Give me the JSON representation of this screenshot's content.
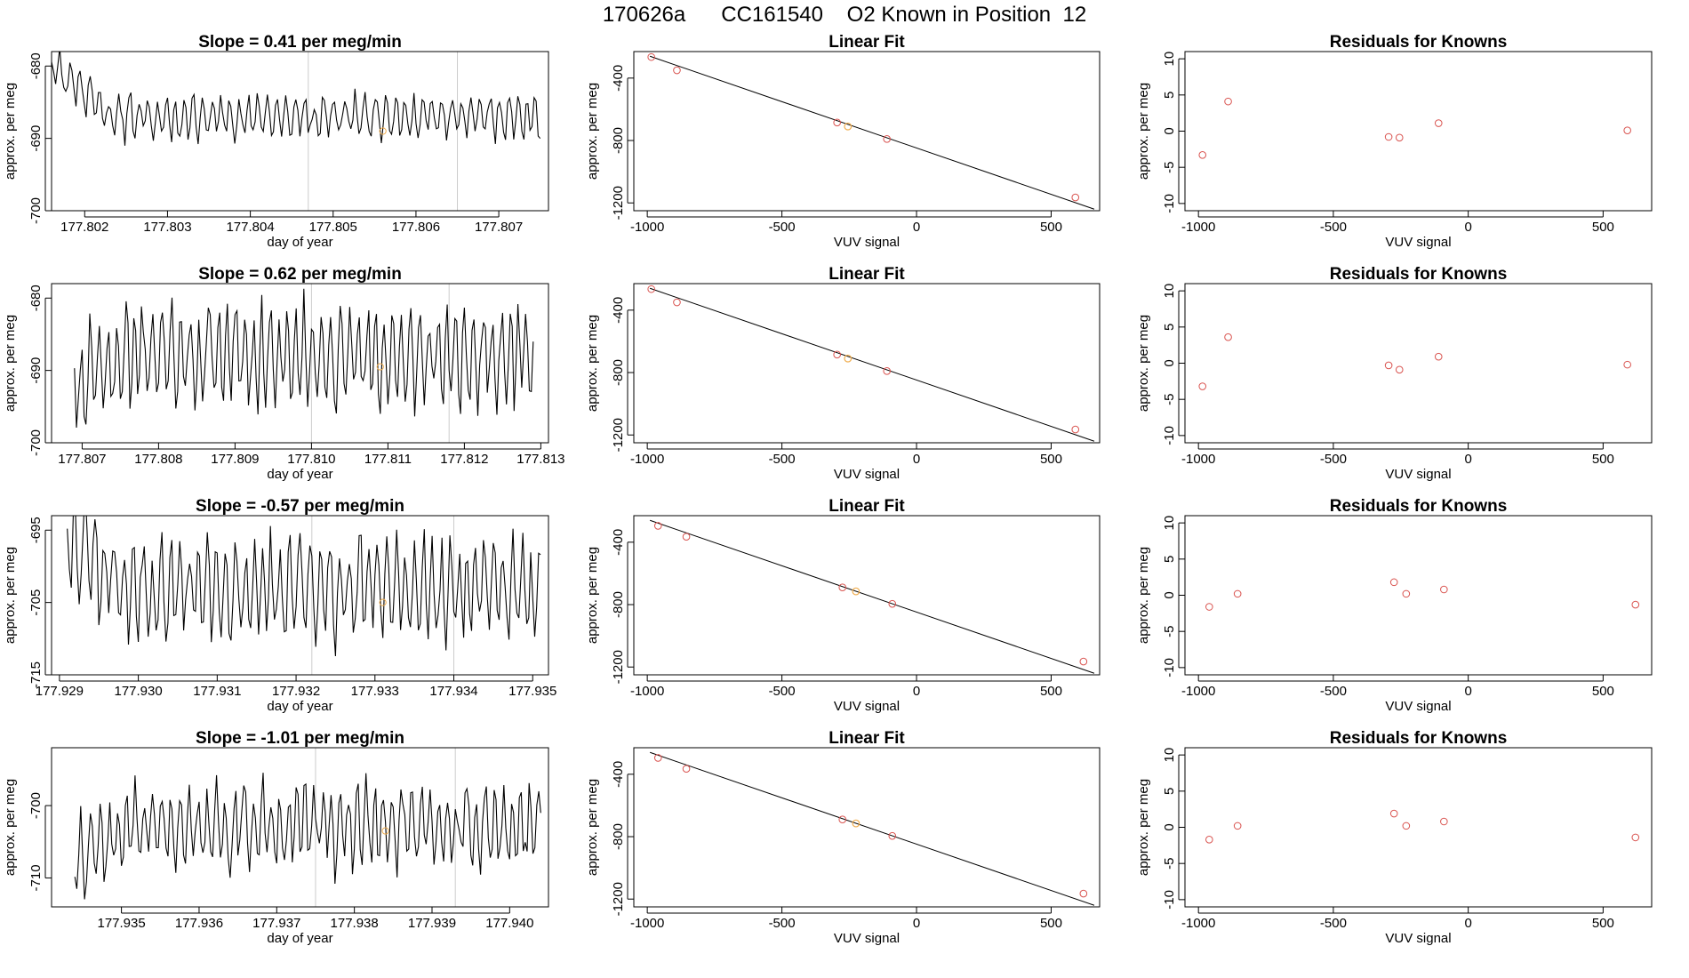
{
  "page_title": "170626a      CC161540    O2 Known in Position  12",
  "colors": {
    "line": "#000000",
    "point": "#d9534f",
    "highlight": "#f0ad4e",
    "vline": "#cccccc"
  },
  "chart_data": [
    {
      "row": 1,
      "panels": [
        {
          "type": "line",
          "title": "Slope =  0.41  per meg/min",
          "xlabel": "day of year",
          "ylabel": "approx. per meg",
          "xlim": [
            177.8016,
            177.8076
          ],
          "ylim": [
            -700,
            -678
          ],
          "xticks": [
            177.802,
            177.803,
            177.804,
            177.805,
            177.806,
            177.807
          ],
          "xtick_labels": [
            "177.802",
            "177.803",
            "177.804",
            "177.805",
            "177.806",
            "177.807"
          ],
          "yticks": [
            -700,
            -690,
            -680
          ],
          "ytick_labels": [
            "-700",
            "-690",
            "-680"
          ],
          "x_start": 177.8016,
          "x_end": 177.8075,
          "level": -687,
          "amplitude": 3,
          "trace_start_level": -680,
          "vlines": [
            177.8047,
            177.8065
          ],
          "highlight_point": {
            "x": 177.8056,
            "y": -689
          }
        },
        {
          "type": "scatter_fit",
          "title": "Linear Fit",
          "xlabel": "VUV signal",
          "ylabel": "approx. per meg",
          "xlim": [
            -1050,
            680
          ],
          "ylim": [
            -1250,
            -230
          ],
          "xticks": [
            -1000,
            -500,
            0,
            500
          ],
          "xtick_labels": [
            "-1000",
            "-500",
            "0",
            "500"
          ],
          "yticks": [
            -1200,
            -800,
            -400
          ],
          "ytick_labels": [
            "-1200",
            "-800",
            "-400"
          ],
          "line": {
            "x1": -990,
            "y1": -260,
            "x2": 660,
            "y2": -1240
          },
          "points": [
            [
              -985,
              -265
            ],
            [
              -890,
              -350
            ],
            [
              -295,
              -685
            ],
            [
              -110,
              -790
            ],
            [
              590,
              -1165
            ]
          ],
          "highlight_point": [
            -255,
            -710
          ]
        },
        {
          "type": "scatter",
          "title": "Residuals for Knowns",
          "xlabel": "VUV signal",
          "ylabel": "approx. per meg",
          "xlim": [
            -1050,
            680
          ],
          "ylim": [
            -11,
            11
          ],
          "xticks": [
            -1000,
            -500,
            0,
            500
          ],
          "xtick_labels": [
            "-1000",
            "-500",
            "0",
            "500"
          ],
          "yticks": [
            -10,
            -5,
            0,
            5,
            10
          ],
          "ytick_labels": [
            "-10",
            "-5",
            "0",
            "5",
            "10"
          ],
          "points": [
            [
              -985,
              -3.3
            ],
            [
              -890,
              4.1
            ],
            [
              -295,
              -0.8
            ],
            [
              -255,
              -0.9
            ],
            [
              -110,
              1.1
            ],
            [
              590,
              0.1
            ]
          ]
        }
      ]
    },
    {
      "row": 2,
      "panels": [
        {
          "type": "line",
          "title": "Slope =  0.62  per meg/min",
          "xlabel": "day of year",
          "ylabel": "approx. per meg",
          "xlim": [
            177.8066,
            177.8131
          ],
          "ylim": [
            -700,
            -678
          ],
          "xticks": [
            177.807,
            177.808,
            177.809,
            177.81,
            177.811,
            177.812,
            177.813
          ],
          "xtick_labels": [
            "177.807",
            "177.808",
            "177.809",
            "177.810",
            "177.811",
            "177.812",
            "177.813"
          ],
          "yticks": [
            -700,
            -690,
            -680
          ],
          "ytick_labels": [
            "-700",
            "-690",
            "-680"
          ],
          "x_start": 177.8069,
          "x_end": 177.8129,
          "level": -688,
          "amplitude": 7,
          "trace_start_level": -692,
          "vlines": [
            177.81,
            177.8118
          ],
          "highlight_point": {
            "x": 177.8109,
            "y": -689.5
          }
        },
        {
          "type": "scatter_fit",
          "title": "Linear Fit",
          "xlabel": "VUV signal",
          "ylabel": "approx. per meg",
          "xlim": [
            -1050,
            680
          ],
          "ylim": [
            -1250,
            -230
          ],
          "xticks": [
            -1000,
            -500,
            0,
            500
          ],
          "xtick_labels": [
            "-1000",
            "-500",
            "0",
            "500"
          ],
          "yticks": [
            -1200,
            -800,
            -400
          ],
          "ytick_labels": [
            "-1200",
            "-800",
            "-400"
          ],
          "line": {
            "x1": -990,
            "y1": -260,
            "x2": 660,
            "y2": -1240
          },
          "points": [
            [
              -985,
              -265
            ],
            [
              -890,
              -350
            ],
            [
              -295,
              -685
            ],
            [
              -110,
              -790
            ],
            [
              590,
              -1165
            ]
          ],
          "highlight_point": [
            -255,
            -710
          ]
        },
        {
          "type": "scatter",
          "title": "Residuals for Knowns",
          "xlabel": "VUV signal",
          "ylabel": "approx. per meg",
          "xlim": [
            -1050,
            680
          ],
          "ylim": [
            -11,
            11
          ],
          "xticks": [
            -1000,
            -500,
            0,
            500
          ],
          "xtick_labels": [
            "-1000",
            "-500",
            "0",
            "500"
          ],
          "yticks": [
            -10,
            -5,
            0,
            5,
            10
          ],
          "ytick_labels": [
            "-10",
            "-5",
            "0",
            "5",
            "10"
          ],
          "points": [
            [
              -985,
              -3.2
            ],
            [
              -890,
              3.6
            ],
            [
              -295,
              -0.3
            ],
            [
              -255,
              -0.9
            ],
            [
              -110,
              0.9
            ],
            [
              590,
              -0.2
            ]
          ]
        }
      ]
    },
    {
      "row": 3,
      "panels": [
        {
          "type": "line",
          "title": "Slope =  -0.57  per meg/min",
          "xlabel": "day of year",
          "ylabel": "approx. per meg",
          "xlim": [
            177.9289,
            177.9352
          ],
          "ylim": [
            -715,
            -693
          ],
          "xticks": [
            177.929,
            177.93,
            177.931,
            177.932,
            177.933,
            177.934,
            177.935
          ],
          "xtick_labels": [
            "177.929",
            "177.930",
            "177.931",
            "177.932",
            "177.933",
            "177.934",
            "177.935"
          ],
          "yticks": [
            -715,
            -705,
            -695
          ],
          "ytick_labels": [
            "-715",
            "-705",
            "-695"
          ],
          "x_start": 177.9291,
          "x_end": 177.9351,
          "level": -703,
          "amplitude": 7,
          "trace_start_level": -696,
          "vlines": [
            177.9322,
            177.934
          ],
          "highlight_point": {
            "x": 177.9331,
            "y": -705
          }
        },
        {
          "type": "scatter_fit",
          "title": "Linear Fit",
          "xlabel": "VUV signal",
          "ylabel": "approx. per meg",
          "xlim": [
            -1050,
            680
          ],
          "ylim": [
            -1250,
            -230
          ],
          "xticks": [
            -1000,
            -500,
            0,
            500
          ],
          "xtick_labels": [
            "-1000",
            "-500",
            "0",
            "500"
          ],
          "yticks": [
            -1200,
            -800,
            -400
          ],
          "ytick_labels": [
            "-1200",
            "-800",
            "-400"
          ],
          "line": {
            "x1": -990,
            "y1": -260,
            "x2": 660,
            "y2": -1240
          },
          "points": [
            [
              -960,
              -295
            ],
            [
              -855,
              -365
            ],
            [
              -275,
              -690
            ],
            [
              -90,
              -795
            ],
            [
              620,
              -1165
            ]
          ],
          "highlight_point": [
            -225,
            -715
          ]
        },
        {
          "type": "scatter",
          "title": "Residuals for Knowns",
          "xlabel": "VUV signal",
          "ylabel": "approx. per meg",
          "xlim": [
            -1050,
            680
          ],
          "ylim": [
            -11,
            11
          ],
          "xticks": [
            -1000,
            -500,
            0,
            500
          ],
          "xtick_labels": [
            "-1000",
            "-500",
            "0",
            "500"
          ],
          "yticks": [
            -10,
            -5,
            0,
            5,
            10
          ],
          "ytick_labels": [
            "-10",
            "-5",
            "0",
            "5",
            "10"
          ],
          "points": [
            [
              -960,
              -1.6
            ],
            [
              -855,
              0.2
            ],
            [
              -275,
              1.8
            ],
            [
              -230,
              0.2
            ],
            [
              -90,
              0.8
            ],
            [
              620,
              -1.3
            ]
          ]
        }
      ]
    },
    {
      "row": 4,
      "panels": [
        {
          "type": "line",
          "title": "Slope =  -1.01  per meg/min",
          "xlabel": "day of year",
          "ylabel": "approx. per meg",
          "xlim": [
            177.9341,
            177.9405
          ],
          "ylim": [
            -714,
            -692
          ],
          "xticks": [
            177.935,
            177.936,
            177.937,
            177.938,
            177.939,
            177.94
          ],
          "xtick_labels": [
            "177.935",
            "177.936",
            "177.937",
            "177.938",
            "177.939",
            "177.940"
          ],
          "yticks": [
            -710,
            -700
          ],
          "ytick_labels": [
            "-710",
            "-700"
          ],
          "x_start": 177.9344,
          "x_end": 177.9404,
          "level": -703,
          "amplitude": 6,
          "trace_start_level": -707,
          "vlines": [
            177.9375,
            177.9393
          ],
          "highlight_point": {
            "x": 177.9384,
            "y": -703.5
          }
        },
        {
          "type": "scatter_fit",
          "title": "Linear Fit",
          "xlabel": "VUV signal",
          "ylabel": "approx. per meg",
          "xlim": [
            -1050,
            680
          ],
          "ylim": [
            -1250,
            -230
          ],
          "xticks": [
            -1000,
            -500,
            0,
            500
          ],
          "xtick_labels": [
            "-1000",
            "-500",
            "0",
            "500"
          ],
          "yticks": [
            -1200,
            -800,
            -400
          ],
          "ytick_labels": [
            "-1200",
            "-800",
            "-400"
          ],
          "line": {
            "x1": -990,
            "y1": -260,
            "x2": 660,
            "y2": -1240
          },
          "points": [
            [
              -960,
              -295
            ],
            [
              -855,
              -365
            ],
            [
              -275,
              -690
            ],
            [
              -90,
              -795
            ],
            [
              620,
              -1165
            ]
          ],
          "highlight_point": [
            -225,
            -715
          ]
        },
        {
          "type": "scatter",
          "title": "Residuals for Knowns",
          "xlabel": "VUV signal",
          "ylabel": "approx. per meg",
          "xlim": [
            -1050,
            680
          ],
          "ylim": [
            -11,
            11
          ],
          "xticks": [
            -1000,
            -500,
            0,
            500
          ],
          "xtick_labels": [
            "-1000",
            "-500",
            "0",
            "500"
          ],
          "yticks": [
            -10,
            -5,
            0,
            5,
            10
          ],
          "ytick_labels": [
            "-10",
            "-5",
            "0",
            "5",
            "10"
          ],
          "points": [
            [
              -960,
              -1.7
            ],
            [
              -855,
              0.2
            ],
            [
              -275,
              1.9
            ],
            [
              -230,
              0.2
            ],
            [
              -90,
              0.8
            ],
            [
              620,
              -1.4
            ]
          ]
        }
      ]
    }
  ]
}
